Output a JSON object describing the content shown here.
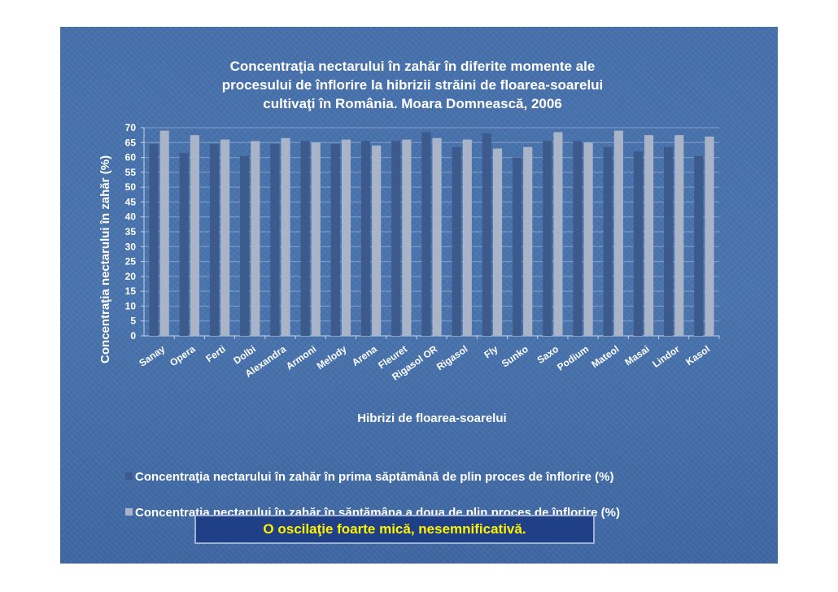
{
  "chart_data": {
    "type": "bar",
    "title_lines": [
      "Concentraţia nectarului în zahăr în diferite momente ale",
      "procesului de înflorire la hibrizii străini de floarea-soarelui",
      "cultivaţi în România. Moara Domnească, 2006"
    ],
    "xlabel": "Hibrizi de floarea-soarelui",
    "ylabel": "Concentraţia nectarului în zahăr (%)",
    "ylim": [
      0,
      70
    ],
    "yticks": [
      "0",
      "5",
      "10",
      "15",
      "20",
      "25",
      "30",
      "35",
      "40",
      "45",
      "50",
      "55",
      "60",
      "65",
      "70"
    ],
    "grid": true,
    "legend_position": "bottom",
    "categories": [
      "Sanay",
      "Opera",
      "Ferti",
      "Dolbi",
      "Alexandra",
      "Armoni",
      "Melody",
      "Arena",
      "Fleuret",
      "Rigasol OR",
      "Rigasol",
      "Fly",
      "Sunko",
      "Saxo",
      "Podium",
      "Mateol",
      "Masai",
      "Lindor",
      "Kasol"
    ],
    "series": [
      {
        "name": "Concentraţia nectarului în zahăr în prima săptămână de plin proces de înflorire (%)",
        "color": "#3c5a8c",
        "values": [
          64.5,
          61.5,
          64.5,
          60.5,
          64.5,
          65.5,
          64.5,
          65.5,
          65.5,
          68.5,
          63.5,
          68.0,
          60.0,
          65.5,
          65.5,
          63.5,
          62.0,
          63.5,
          60.5
        ]
      },
      {
        "name": "Concentraţia nectarului în zahăr  în săptămâna a doua de plin proces de înflorire (%)",
        "color": "#a9b4c8",
        "values": [
          69.0,
          67.5,
          66.0,
          65.5,
          66.5,
          65.0,
          66.0,
          64.0,
          66.0,
          66.5,
          66.0,
          63.0,
          63.5,
          68.5,
          65.0,
          69.0,
          67.5,
          67.5,
          67.0
        ]
      }
    ]
  },
  "note": "O oscilaţie foarte mică, nesemnificativă."
}
